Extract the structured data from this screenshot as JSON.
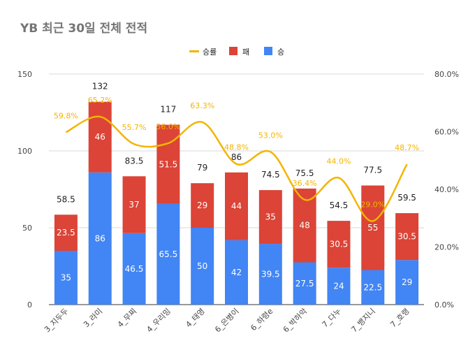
{
  "chart_data": {
    "type": "bar",
    "stacked": true,
    "title": "YB 최근 30일 전체 전적",
    "categories": [
      "3_지두두",
      "3_라미",
      "4_무찌",
      "4_우리밍",
      "4_태영",
      "6_은병이",
      "6_하령e",
      "6_박하악",
      "7_다누",
      "7_뱅지니",
      "7_호랭"
    ],
    "series": [
      {
        "name": "승",
        "type": "bar",
        "axis": "left",
        "color": "#4285f4",
        "values": [
          35,
          86,
          46.5,
          65.5,
          50,
          42,
          39.5,
          27.5,
          24,
          22.5,
          29
        ]
      },
      {
        "name": "패",
        "type": "bar",
        "axis": "left",
        "color": "#db4437",
        "values": [
          23.5,
          46,
          37,
          51.5,
          29,
          44,
          35,
          48,
          30.5,
          55,
          30.5
        ]
      },
      {
        "name": "승률",
        "type": "line",
        "axis": "right",
        "color": "#f4b400",
        "values": [
          59.8,
          65.2,
          55.7,
          56.0,
          63.3,
          48.8,
          53.0,
          36.4,
          44.0,
          29.0,
          48.7
        ],
        "labels": [
          "59.8%",
          "65.2%",
          "55.7%",
          "56.0%",
          "63.3%",
          "48.8%",
          "53.0%",
          "36.4%",
          "44.0%",
          "29.0%",
          "48.7%"
        ]
      }
    ],
    "totals": [
      58.5,
      132,
      83.5,
      117,
      79,
      86,
      74.5,
      75.5,
      54.5,
      77.5,
      59.5
    ],
    "total_labels": [
      "58.5",
      "132",
      "83.5",
      "117",
      "79",
      "86",
      "74.5",
      "75.5",
      "54.5",
      "77.5",
      "59.5"
    ],
    "win_labels": [
      "35",
      "86",
      "46.5",
      "65.5",
      "50",
      "42",
      "39.5",
      "27.5",
      "24",
      "22.5",
      "29"
    ],
    "loss_labels": [
      "23.5",
      "46",
      "37",
      "51.5",
      "29",
      "44",
      "35",
      "48",
      "30.5",
      "55",
      "30.5"
    ],
    "y_left": {
      "min": 0,
      "max": 150,
      "ticks": [
        0,
        50,
        100,
        150
      ],
      "tick_labels": [
        "0",
        "50",
        "100",
        "150"
      ]
    },
    "y_right": {
      "min": 0,
      "max": 80,
      "ticks": [
        0,
        20,
        40,
        60,
        80
      ],
      "tick_labels": [
        "0.0%",
        "20.0%",
        "40.0%",
        "60.0%",
        "80.0%"
      ]
    },
    "legend": {
      "position": "top-center",
      "items": [
        {
          "label": "승률",
          "color": "#f4b400",
          "kind": "line"
        },
        {
          "label": "패",
          "color": "#db4437",
          "kind": "box"
        },
        {
          "label": "승",
          "color": "#4285f4",
          "kind": "box"
        }
      ]
    },
    "grid": true
  }
}
